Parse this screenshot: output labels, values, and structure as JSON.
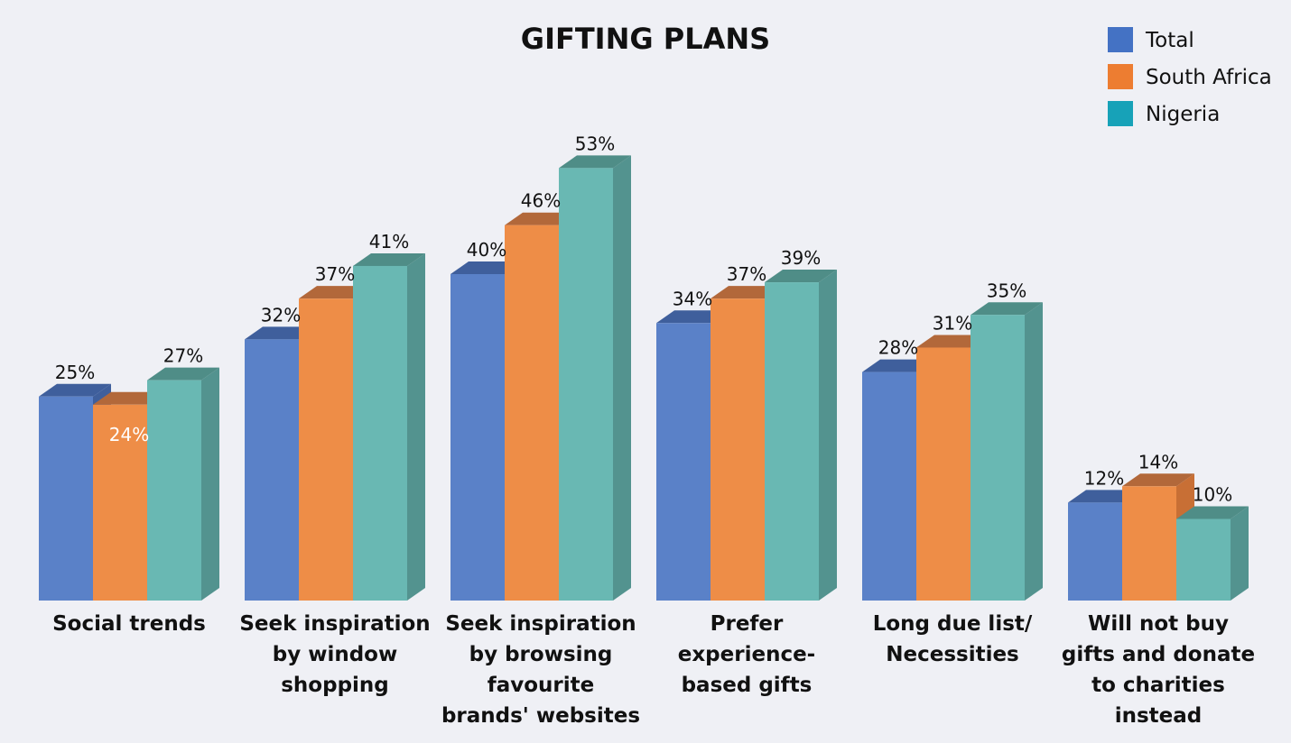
{
  "chart_data": {
    "type": "bar",
    "title": "GIFTING PLANS",
    "categories": [
      "Social trends",
      "Seek inspiration by window shopping",
      "Seek inspiration by browsing favourite brands' websites",
      "Prefer experience-based gifts",
      "Long due list/ Necessities",
      "Will not buy gifts and donate to charities instead"
    ],
    "category_label_lines": [
      [
        "Social trends"
      ],
      [
        "Seek inspiration",
        "by window",
        "shopping"
      ],
      [
        "Seek inspiration",
        "by browsing",
        "favourite",
        "brands' websites"
      ],
      [
        "Prefer",
        "experience-",
        "based gifts"
      ],
      [
        "Long due list/",
        "Necessities"
      ],
      [
        "Will not buy",
        "gifts and donate",
        "to charities",
        "instead"
      ]
    ],
    "series": [
      {
        "name": "Total",
        "values": [
          25,
          32,
          40,
          34,
          28,
          12
        ],
        "labels": [
          "25%",
          "32%",
          "40%",
          "34%",
          "28%",
          "12%"
        ]
      },
      {
        "name": "South Africa",
        "values": [
          24,
          37,
          46,
          37,
          31,
          14
        ],
        "labels": [
          "24%",
          "37%",
          "46%",
          "37%",
          "31%",
          "14%"
        ]
      },
      {
        "name": "Nigeria",
        "values": [
          27,
          41,
          53,
          39,
          35,
          10
        ],
        "labels": [
          "27%",
          "41%",
          "53%",
          "39%",
          "35%",
          "10%"
        ]
      }
    ],
    "colors": {
      "Total": {
        "front": "#5a81c8",
        "top": "#3f5f9c",
        "side": "#3f5f9c"
      },
      "South Africa": {
        "front": "#ee8d47",
        "top": "#b2683a",
        "side": "#c86f35"
      },
      "Nigeria": {
        "front": "#69b8b3",
        "top": "#4f8d87",
        "side": "#53938f"
      }
    },
    "legend_swatches": {
      "Total": "#4472c4",
      "South Africa": "#ed7d31",
      "Nigeria": "#17a2b8"
    },
    "legend_position": "top-right",
    "ylim": [
      0,
      60
    ],
    "grid": false
  }
}
